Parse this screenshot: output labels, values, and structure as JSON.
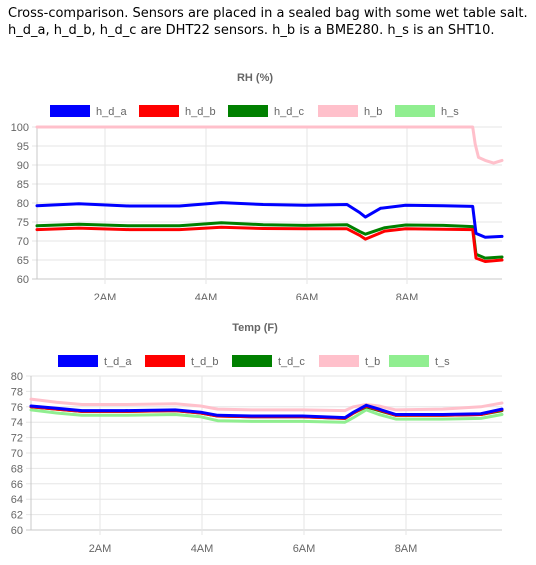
{
  "intro": {
    "line1": "Cross-comparison. Sensors are placed in a sealed bag with some wet table salt.",
    "line2": "h_d_a, h_d_b, h_d_c are DHT22 sensors. h_b is a BME280. h_s is an SHT10."
  },
  "chart_data": [
    {
      "type": "line",
      "title": "RH (%)",
      "xlabel": "",
      "ylabel": "",
      "x_ticks": [
        "2AM",
        "4AM",
        "6AM",
        "8AM"
      ],
      "xlim": [
        "00:40",
        "09:55"
      ],
      "ylim": [
        60,
        100
      ],
      "y_ticks": [
        60,
        65,
        70,
        75,
        80,
        85,
        90,
        95,
        100
      ],
      "grid": true,
      "legend": "top",
      "series": [
        {
          "name": "h_d_a",
          "color": "#0000ff",
          "points": [
            [
              "00:40",
              79.3
            ],
            [
              "01:30",
              79.8
            ],
            [
              "02:30",
              79.2
            ],
            [
              "03:30",
              79.2
            ],
            [
              "04:20",
              80.1
            ],
            [
              "05:10",
              79.6
            ],
            [
              "06:00",
              79.4
            ],
            [
              "06:50",
              79.6
            ],
            [
              "07:05",
              77.5
            ],
            [
              "07:12",
              76.3
            ],
            [
              "07:30",
              78.6
            ],
            [
              "08:00",
              79.4
            ],
            [
              "08:45",
              79.3
            ],
            [
              "09:20",
              79.1
            ],
            [
              "09:24",
              72.0
            ],
            [
              "09:35",
              71.0
            ],
            [
              "09:55",
              71.2
            ]
          ]
        },
        {
          "name": "h_d_b",
          "color": "#ff0000",
          "points": [
            [
              "00:40",
              73.0
            ],
            [
              "01:30",
              73.4
            ],
            [
              "02:30",
              73.0
            ],
            [
              "03:30",
              73.0
            ],
            [
              "04:20",
              73.6
            ],
            [
              "05:10",
              73.3
            ],
            [
              "06:00",
              73.2
            ],
            [
              "06:50",
              73.2
            ],
            [
              "07:05",
              71.5
            ],
            [
              "07:12",
              70.5
            ],
            [
              "07:35",
              72.6
            ],
            [
              "08:00",
              73.2
            ],
            [
              "08:45",
              73.1
            ],
            [
              "09:20",
              73.0
            ],
            [
              "09:24",
              65.5
            ],
            [
              "09:35",
              64.6
            ],
            [
              "09:55",
              65.0
            ]
          ]
        },
        {
          "name": "h_d_c",
          "color": "#008000",
          "points": [
            [
              "00:40",
              74.0
            ],
            [
              "01:30",
              74.4
            ],
            [
              "02:30",
              74.0
            ],
            [
              "03:30",
              74.0
            ],
            [
              "04:20",
              74.8
            ],
            [
              "05:10",
              74.3
            ],
            [
              "06:00",
              74.1
            ],
            [
              "06:50",
              74.3
            ],
            [
              "07:05",
              72.5
            ],
            [
              "07:12",
              71.8
            ],
            [
              "07:35",
              73.5
            ],
            [
              "08:00",
              74.2
            ],
            [
              "08:45",
              74.1
            ],
            [
              "09:20",
              73.8
            ],
            [
              "09:24",
              66.5
            ],
            [
              "09:35",
              65.5
            ],
            [
              "09:55",
              65.8
            ]
          ]
        },
        {
          "name": "h_b",
          "color": "#ffc0cb",
          "points": [
            [
              "00:40",
              100
            ],
            [
              "09:20",
              100
            ],
            [
              "09:23",
              95.5
            ],
            [
              "09:27",
              92.0
            ],
            [
              "09:35",
              91.2
            ],
            [
              "09:45",
              90.5
            ],
            [
              "09:55",
              91.2
            ]
          ]
        },
        {
          "name": "h_s",
          "color": "#90ee90",
          "points": []
        }
      ]
    },
    {
      "type": "line",
      "title": "Temp (F)",
      "xlabel": "",
      "ylabel": "",
      "x_ticks": [
        "2AM",
        "4AM",
        "6AM",
        "8AM"
      ],
      "xlim": [
        "00:40",
        "09:55"
      ],
      "ylim": [
        60,
        80
      ],
      "y_ticks": [
        60,
        62,
        64,
        66,
        68,
        70,
        72,
        74,
        76,
        78,
        80
      ],
      "grid": true,
      "legend": "top",
      "series": [
        {
          "name": "t_d_a",
          "color": "#0000ff",
          "points": [
            [
              "00:40",
              76.1
            ],
            [
              "01:10",
              75.8
            ],
            [
              "01:40",
              75.5
            ],
            [
              "02:30",
              75.5
            ],
            [
              "03:30",
              75.6
            ],
            [
              "04:00",
              75.3
            ],
            [
              "04:20",
              74.9
            ],
            [
              "05:00",
              74.8
            ],
            [
              "06:00",
              74.8
            ],
            [
              "06:50",
              74.6
            ],
            [
              "07:00",
              75.3
            ],
            [
              "07:15",
              76.2
            ],
            [
              "07:30",
              75.7
            ],
            [
              "07:50",
              75.0
            ],
            [
              "08:45",
              75.0
            ],
            [
              "09:30",
              75.1
            ],
            [
              "09:55",
              75.7
            ]
          ]
        },
        {
          "name": "t_d_b",
          "color": "#ff0000",
          "points": [
            [
              "00:40",
              76.0
            ],
            [
              "01:10",
              75.7
            ],
            [
              "01:40",
              75.4
            ],
            [
              "02:30",
              75.4
            ],
            [
              "03:30",
              75.5
            ],
            [
              "04:00",
              75.2
            ],
            [
              "04:20",
              74.8
            ],
            [
              "05:00",
              74.7
            ],
            [
              "06:00",
              74.7
            ],
            [
              "06:50",
              74.5
            ],
            [
              "07:00",
              75.2
            ],
            [
              "07:15",
              76.1
            ],
            [
              "07:30",
              75.6
            ],
            [
              "07:50",
              74.9
            ],
            [
              "08:45",
              74.9
            ],
            [
              "09:30",
              75.0
            ],
            [
              "09:55",
              75.6
            ]
          ]
        },
        {
          "name": "t_d_c",
          "color": "#008000",
          "points": [
            [
              "00:40",
              76.0
            ],
            [
              "01:10",
              75.7
            ],
            [
              "01:40",
              75.4
            ],
            [
              "02:30",
              75.4
            ],
            [
              "03:30",
              75.5
            ],
            [
              "04:00",
              75.2
            ],
            [
              "04:20",
              74.8
            ],
            [
              "05:00",
              74.7
            ],
            [
              "06:00",
              74.7
            ],
            [
              "06:50",
              74.5
            ],
            [
              "07:00",
              75.2
            ],
            [
              "07:15",
              76.0
            ],
            [
              "07:30",
              75.5
            ],
            [
              "07:50",
              74.9
            ],
            [
              "08:45",
              74.9
            ],
            [
              "09:30",
              75.0
            ],
            [
              "09:55",
              75.5
            ]
          ]
        },
        {
          "name": "t_b",
          "color": "#ffc0cb",
          "points": [
            [
              "00:40",
              77.0
            ],
            [
              "01:10",
              76.6
            ],
            [
              "01:40",
              76.3
            ],
            [
              "02:30",
              76.3
            ],
            [
              "03:30",
              76.4
            ],
            [
              "04:00",
              76.1
            ],
            [
              "04:20",
              75.7
            ],
            [
              "05:00",
              75.6
            ],
            [
              "06:00",
              75.6
            ],
            [
              "06:50",
              75.5
            ],
            [
              "07:00",
              76.0
            ],
            [
              "07:15",
              76.3
            ],
            [
              "07:30",
              76.1
            ],
            [
              "07:50",
              75.6
            ],
            [
              "08:45",
              75.7
            ],
            [
              "09:30",
              76.0
            ],
            [
              "09:55",
              76.5
            ]
          ]
        },
        {
          "name": "t_s",
          "color": "#90ee90",
          "points": [
            [
              "00:40",
              75.6
            ],
            [
              "01:10",
              75.2
            ],
            [
              "01:40",
              74.9
            ],
            [
              "02:30",
              74.9
            ],
            [
              "03:30",
              75.0
            ],
            [
              "04:00",
              74.7
            ],
            [
              "04:20",
              74.2
            ],
            [
              "05:00",
              74.1
            ],
            [
              "06:00",
              74.1
            ],
            [
              "06:50",
              74.0
            ],
            [
              "07:00",
              74.6
            ],
            [
              "07:15",
              75.6
            ],
            [
              "07:30",
              75.0
            ],
            [
              "07:50",
              74.4
            ],
            [
              "08:45",
              74.4
            ],
            [
              "09:30",
              74.5
            ],
            [
              "09:55",
              75.0
            ]
          ]
        }
      ]
    }
  ]
}
